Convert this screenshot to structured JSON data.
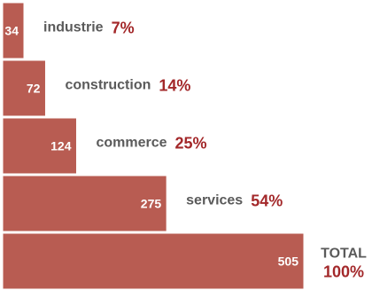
{
  "colors": {
    "bar": "#b85c52",
    "percent": "#a3282a",
    "category": "#5a5a5a",
    "value_text": "#ffffff"
  },
  "chart_data": {
    "type": "bar",
    "orientation": "horizontal",
    "categories": [
      "industrie",
      "construction",
      "commerce",
      "services"
    ],
    "values": [
      34,
      72,
      124,
      275
    ],
    "percentages": [
      "7%",
      "14%",
      "25%",
      "54%"
    ],
    "total": {
      "label": "TOTAL",
      "value": 505,
      "percentage": "100%"
    },
    "title": "",
    "xlabel": "",
    "ylabel": "",
    "xlim": [
      0,
      505
    ],
    "grid": false,
    "legend": "none"
  }
}
